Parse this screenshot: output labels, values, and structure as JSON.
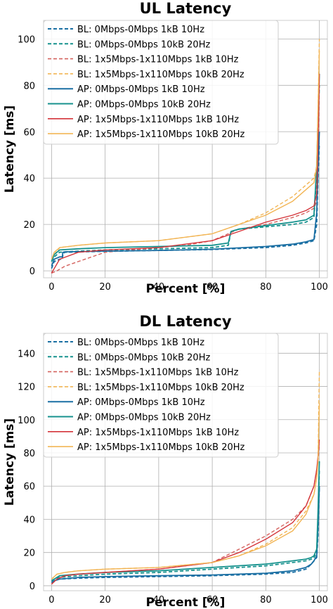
{
  "series_styles": [
    {
      "color": "#1a6fa3",
      "dash": "5,3",
      "width": 1.8
    },
    {
      "color": "#17928e",
      "dash": "5,3",
      "width": 1.8
    },
    {
      "color": "#d4625e",
      "dash": "5,3",
      "width": 1.4
    },
    {
      "color": "#f2b555",
      "dash": "5,3",
      "width": 1.4
    },
    {
      "color": "#1a6fa3",
      "dash": "",
      "width": 1.8
    },
    {
      "color": "#17928e",
      "dash": "",
      "width": 1.8
    },
    {
      "color": "#d4343a",
      "dash": "",
      "width": 1.4
    },
    {
      "color": "#f2b555",
      "dash": "",
      "width": 1.4
    }
  ],
  "chart_data": [
    {
      "type": "line",
      "title": "UL Latency",
      "xlabel": "Percent [%]",
      "ylabel": "Latency [ms]",
      "xlim": [
        -3,
        103
      ],
      "ylim": [
        -3,
        108
      ],
      "xticks": [
        0,
        20,
        40,
        60,
        80,
        100
      ],
      "yticks": [
        0,
        20,
        40,
        60,
        80,
        100
      ],
      "grid": true,
      "legend_position": "top-left",
      "series": [
        {
          "name": "BL: 0Mbps-0Mbps 1kB 10Hz",
          "x": [
            0,
            1,
            3,
            4,
            4.3,
            5,
            20,
            40,
            60,
            80,
            90,
            95,
            98,
            99,
            99.5,
            100
          ],
          "y": [
            1,
            4,
            5,
            5,
            7.5,
            8,
            8.4,
            8.8,
            9.2,
            10,
            11,
            12,
            13,
            20,
            40,
            55
          ]
        },
        {
          "name": "BL: 0Mbps-0Mbps 10kB 20Hz",
          "x": [
            0,
            1,
            3,
            10,
            20,
            40,
            60,
            66,
            67,
            70,
            80,
            90,
            95,
            98,
            99,
            99.5,
            100
          ],
          "y": [
            4,
            6,
            8,
            8.5,
            9,
            9.5,
            10,
            11,
            17,
            18,
            19,
            20,
            21,
            23,
            40,
            60,
            80
          ]
        },
        {
          "name": "BL: 1x5Mbps-1x110Mbps 1kB 10Hz",
          "x": [
            0,
            2,
            5,
            10,
            20,
            40,
            50,
            60,
            70,
            80,
            90,
            95,
            98,
            99,
            99.5,
            100
          ],
          "y": [
            -1,
            0,
            2,
            4,
            8,
            10,
            11,
            13,
            18,
            20,
            23,
            25,
            27,
            30,
            50,
            80
          ]
        },
        {
          "name": "BL: 1x5Mbps-1x110Mbps 10kB 20Hz",
          "x": [
            0,
            1,
            3,
            10,
            20,
            40,
            60,
            70,
            80,
            90,
            95,
            98,
            99,
            99.5,
            100
          ],
          "y": [
            5,
            7,
            10,
            11,
            12,
            13,
            16,
            20,
            25,
            32,
            37,
            40,
            45,
            70,
            100
          ]
        },
        {
          "name": "AP: 0Mbps-0Mbps  1kB 10Hz",
          "x": [
            0,
            1,
            3,
            4,
            4.2,
            5,
            20,
            40,
            60,
            80,
            90,
            95,
            98,
            99,
            99.5,
            100
          ],
          "y": [
            2,
            5,
            6,
            6,
            8,
            8.2,
            8.5,
            8.8,
            9.3,
            10.5,
            11.5,
            12.5,
            13.5,
            25,
            45,
            60
          ]
        },
        {
          "name": "AP: 0Mbps-0Mbps 10kB 20Hz",
          "x": [
            0,
            1,
            3,
            10,
            20,
            40,
            60,
            66,
            67,
            70,
            80,
            90,
            95,
            98,
            99,
            99.5,
            100
          ],
          "y": [
            4,
            7,
            9,
            9.5,
            10,
            10.5,
            11,
            12,
            17,
            18,
            19.5,
            21,
            22,
            24,
            45,
            65,
            85
          ]
        },
        {
          "name": "AP: 1x5Mbps-1x110Mbps 1kB 10Hz",
          "x": [
            0,
            1,
            3,
            10,
            20,
            40,
            60,
            70,
            80,
            90,
            95,
            98,
            99,
            99.5,
            100
          ],
          "y": [
            -1,
            1,
            5,
            8,
            9,
            10,
            13,
            17,
            21,
            24,
            26,
            28,
            33,
            55,
            85
          ]
        },
        {
          "name": "AP: 1x5Mbps-1x110Mbps 10kB 20Hz",
          "x": [
            0,
            1,
            3,
            10,
            20,
            40,
            60,
            70,
            80,
            90,
            95,
            98,
            99,
            99.5,
            100
          ],
          "y": [
            5,
            8,
            10,
            11,
            12,
            13,
            16,
            20,
            24,
            30,
            35,
            38,
            45,
            70,
            95
          ]
        }
      ]
    },
    {
      "type": "line",
      "title": "DL Latency",
      "xlabel": "Percent [%]",
      "ylabel": "Latency [ms]",
      "xlim": [
        -3,
        103
      ],
      "ylim": [
        -3,
        152
      ],
      "xticks": [
        0,
        20,
        40,
        60,
        80,
        100
      ],
      "yticks": [
        0,
        20,
        40,
        60,
        80,
        100,
        120,
        140
      ],
      "grid": true,
      "legend_position": "top-left",
      "series": [
        {
          "name": "BL: 0Mbps-0Mbps 1kB 10Hz",
          "x": [
            0,
            1,
            3,
            10,
            20,
            40,
            60,
            80,
            90,
            95,
            97,
            98,
            99,
            99.5,
            100
          ],
          "y": [
            2,
            3,
            4,
            4.5,
            5,
            5.5,
            6,
            7,
            8,
            10,
            13,
            15,
            17,
            30,
            60
          ]
        },
        {
          "name": "BL: 0Mbps-0Mbps 10kB 20Hz",
          "x": [
            0,
            1,
            3,
            10,
            20,
            40,
            60,
            80,
            90,
            95,
            97,
            98,
            99,
            99.5,
            100
          ],
          "y": [
            3,
            4,
            5,
            6,
            7,
            8,
            10,
            12,
            14,
            15,
            16,
            17,
            20,
            40,
            70
          ]
        },
        {
          "name": "BL: 1x5Mbps-1x110Mbps 1kB 10Hz",
          "x": [
            0,
            2,
            5,
            10,
            20,
            40,
            60,
            70,
            80,
            90,
            95,
            98,
            99,
            99.5,
            100
          ],
          "y": [
            1,
            4,
            6,
            7,
            8,
            10,
            14,
            22,
            30,
            40,
            48,
            60,
            70,
            75,
            85
          ]
        },
        {
          "name": "BL: 1x5Mbps-1x110Mbps 10kB 20Hz",
          "x": [
            0,
            2,
            5,
            10,
            20,
            40,
            60,
            70,
            80,
            90,
            95,
            98,
            99,
            99.5,
            100
          ],
          "y": [
            4,
            7,
            8,
            9,
            10,
            11,
            14,
            18,
            25,
            35,
            45,
            55,
            65,
            75,
            130
          ]
        },
        {
          "name": "AP: 0Mbps-0Mbps  1kB 10Hz",
          "x": [
            0,
            1,
            3,
            10,
            20,
            40,
            60,
            80,
            90,
            95,
            97,
            98,
            99,
            99.5,
            100
          ],
          "y": [
            2,
            3,
            4,
            5,
            5.5,
            6,
            6.5,
            7.5,
            9,
            11,
            13,
            15,
            18,
            35,
            60
          ]
        },
        {
          "name": "AP: 0Mbps-0Mbps 10kB 20Hz",
          "x": [
            0,
            1,
            3,
            10,
            20,
            40,
            60,
            80,
            90,
            95,
            97,
            98,
            99,
            99.5,
            100
          ],
          "y": [
            3,
            4,
            6,
            7,
            8,
            9,
            11,
            13,
            15,
            16,
            17,
            18,
            22,
            45,
            75
          ]
        },
        {
          "name": "AP: 1x5Mbps-1x110Mbps 1kB 10Hz",
          "x": [
            0,
            2,
            5,
            10,
            20,
            40,
            60,
            70,
            80,
            90,
            95,
            98,
            99,
            99.5,
            100
          ],
          "y": [
            1,
            4,
            6,
            7,
            8,
            10,
            14,
            20,
            28,
            38,
            48,
            60,
            70,
            78,
            88
          ]
        },
        {
          "name": "AP: 1x5Mbps-1x110Mbps 10kB 20Hz",
          "x": [
            0,
            2,
            5,
            10,
            20,
            40,
            60,
            70,
            80,
            90,
            95,
            98,
            99,
            99.5,
            100
          ],
          "y": [
            4,
            7,
            8,
            9,
            10,
            11,
            14,
            18,
            24,
            33,
            43,
            55,
            65,
            75,
            110
          ]
        }
      ]
    }
  ]
}
